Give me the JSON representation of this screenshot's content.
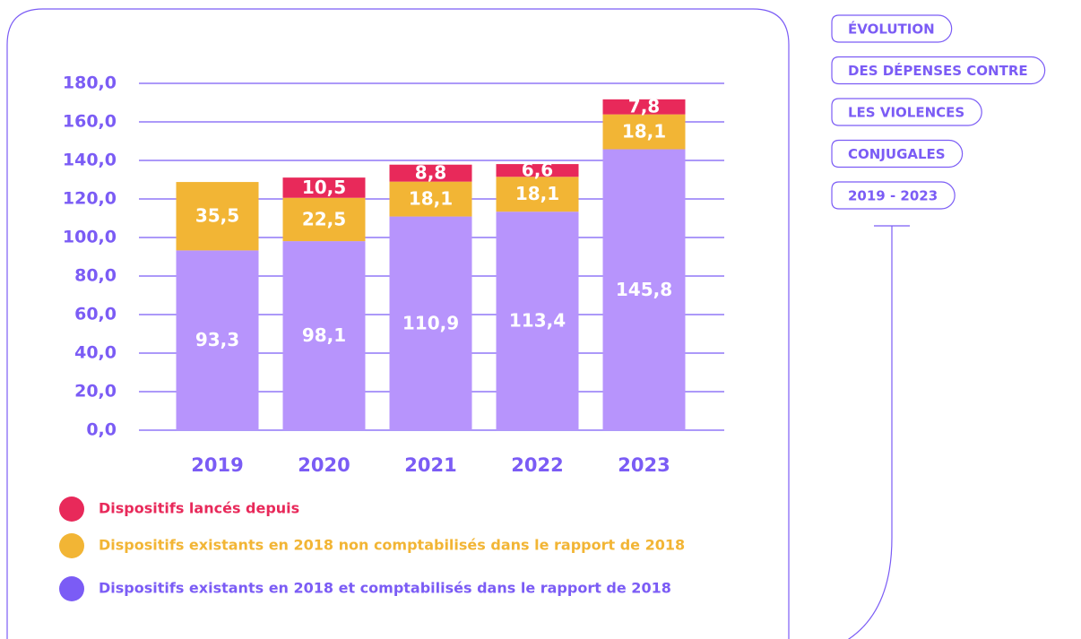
{
  "chart_data": {
    "type": "stacked_bar",
    "title": [
      "ÉVOLUTION",
      "DES DÉPENSES CONTRE",
      "LES VIOLENCES",
      "CONJUGALES",
      "2019 - 2023"
    ],
    "categories": [
      "2019",
      "2020",
      "2021",
      "2022",
      "2023"
    ],
    "series": [
      {
        "name": "Dispositifs existants en 2018 et comptabilisés dans le rapport de 2018",
        "color": "#b794fc",
        "values": [
          93.3,
          98.1,
          110.9,
          113.4,
          145.8
        ],
        "value_labels": [
          "93,3",
          "98,1",
          "110,9",
          "113,4",
          "145,8"
        ]
      },
      {
        "name": "Dispositifs existants en 2018 non comptabilisés dans le rapport de 2018",
        "color": "#f2b535",
        "values": [
          35.5,
          22.5,
          18.1,
          18.1,
          18.1
        ],
        "value_labels": [
          "35,5",
          "22,5",
          "18,1",
          "18,1",
          "18,1"
        ]
      },
      {
        "name": "Dispositifs lancés depuis",
        "color": "#e8295a",
        "values": [
          null,
          10.5,
          8.8,
          6.6,
          7.8
        ],
        "value_labels": [
          null,
          "10,5",
          "8,8",
          "6,6",
          "7,8"
        ]
      }
    ],
    "ylim": [
      0,
      180
    ],
    "yticks": [
      {
        "value": 0,
        "label": "0,0"
      },
      {
        "value": 20,
        "label": "20,0"
      },
      {
        "value": 40,
        "label": "40,0"
      },
      {
        "value": 60,
        "label": "60,0"
      },
      {
        "value": 80,
        "label": "80,0"
      },
      {
        "value": 100,
        "label": "100,0"
      },
      {
        "value": 120,
        "label": "120,0"
      },
      {
        "value": 140,
        "label": "140,0"
      },
      {
        "value": 160,
        "label": "160,0"
      },
      {
        "value": 180,
        "label": "180,0"
      }
    ],
    "grid": true
  }
}
